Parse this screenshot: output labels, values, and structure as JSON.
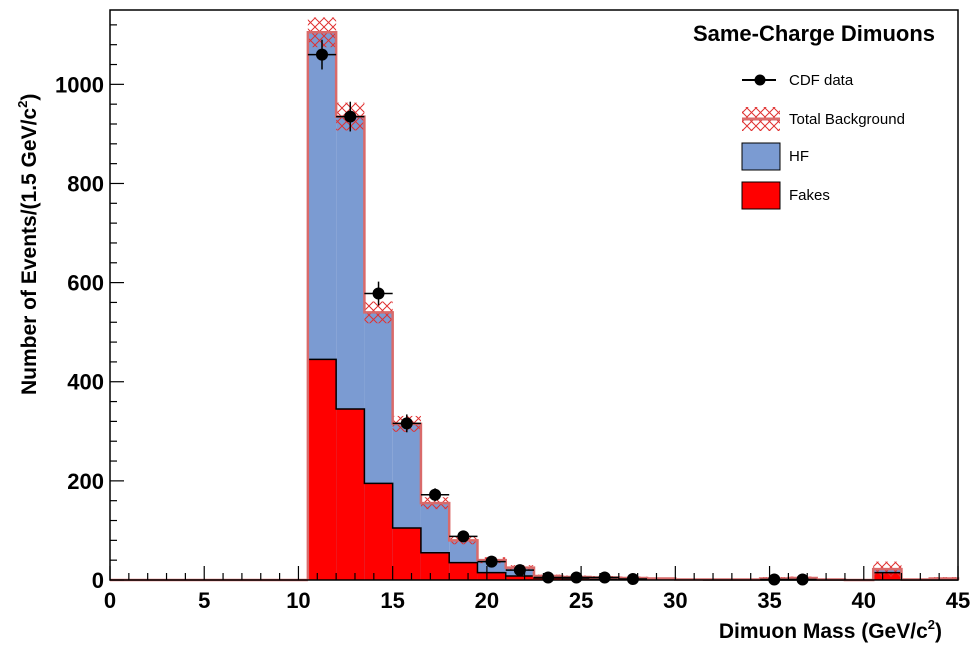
{
  "chart_data": {
    "type": "histogram",
    "title": "Same-Charge Dimuons",
    "xlabel_main": "Dimuon Mass (GeV/c",
    "xlabel_sup": "2",
    "xlabel_end": ")",
    "ylabel_main": "Number of Events/(1.5 GeV/c",
    "ylabel_sup": "2",
    "ylabel_end": ")",
    "xlim": [
      0,
      45
    ],
    "ylim": [
      0,
      1150
    ],
    "bin_width": 1.5,
    "x_ticks": [
      "0",
      "5",
      "10",
      "15",
      "20",
      "25",
      "30",
      "35",
      "40",
      "45"
    ],
    "y_ticks": [
      "0",
      "200",
      "400",
      "600",
      "800",
      "1000"
    ],
    "bin_edges_start": 10.5,
    "fakes": [
      445,
      345,
      195,
      105,
      55,
      35,
      15,
      8,
      4,
      3,
      2,
      1,
      1,
      1,
      0,
      0,
      0,
      0,
      0,
      0,
      15,
      0,
      0
    ],
    "total_background": [
      1105,
      935,
      540,
      315,
      155,
      80,
      40,
      25,
      8,
      6,
      5,
      4,
      3,
      1,
      1,
      1,
      3,
      4,
      1,
      0,
      22,
      1,
      3
    ],
    "background_uncertainty": [
      30,
      28,
      22,
      16,
      12,
      8,
      6,
      5,
      3,
      3,
      3,
      3,
      2,
      2,
      2,
      2,
      3,
      3,
      2,
      0,
      15,
      2,
      3
    ],
    "data_points": [
      {
        "x": 11.25,
        "y": 1060,
        "err": 30
      },
      {
        "x": 12.75,
        "y": 935,
        "err": 30
      },
      {
        "x": 14.25,
        "y": 578,
        "err": 24
      },
      {
        "x": 15.75,
        "y": 316,
        "err": 18
      },
      {
        "x": 17.25,
        "y": 172,
        "err": 13
      },
      {
        "x": 18.75,
        "y": 88,
        "err": 9
      },
      {
        "x": 20.25,
        "y": 37,
        "err": 6
      },
      {
        "x": 21.75,
        "y": 20,
        "err": 4
      },
      {
        "x": 23.25,
        "y": 5,
        "err": 2
      },
      {
        "x": 24.75,
        "y": 5,
        "err": 2
      },
      {
        "x": 26.25,
        "y": 5,
        "err": 2
      },
      {
        "x": 27.75,
        "y": 2,
        "err": 1
      },
      {
        "x": 35.25,
        "y": 1,
        "err": 1
      },
      {
        "x": 36.75,
        "y": 1,
        "err": 1
      }
    ],
    "legend": [
      {
        "label": "CDF data",
        "kind": "data"
      },
      {
        "label": "Total Background",
        "kind": "hatch"
      },
      {
        "label": "HF",
        "kind": "hf"
      },
      {
        "label": "Fakes",
        "kind": "fakes"
      }
    ],
    "colors": {
      "hf": "#7b9bd2",
      "fakes": "#ff0000",
      "background_line": "#d96a6a",
      "hatch": "#e03030",
      "data": "#000000"
    }
  }
}
